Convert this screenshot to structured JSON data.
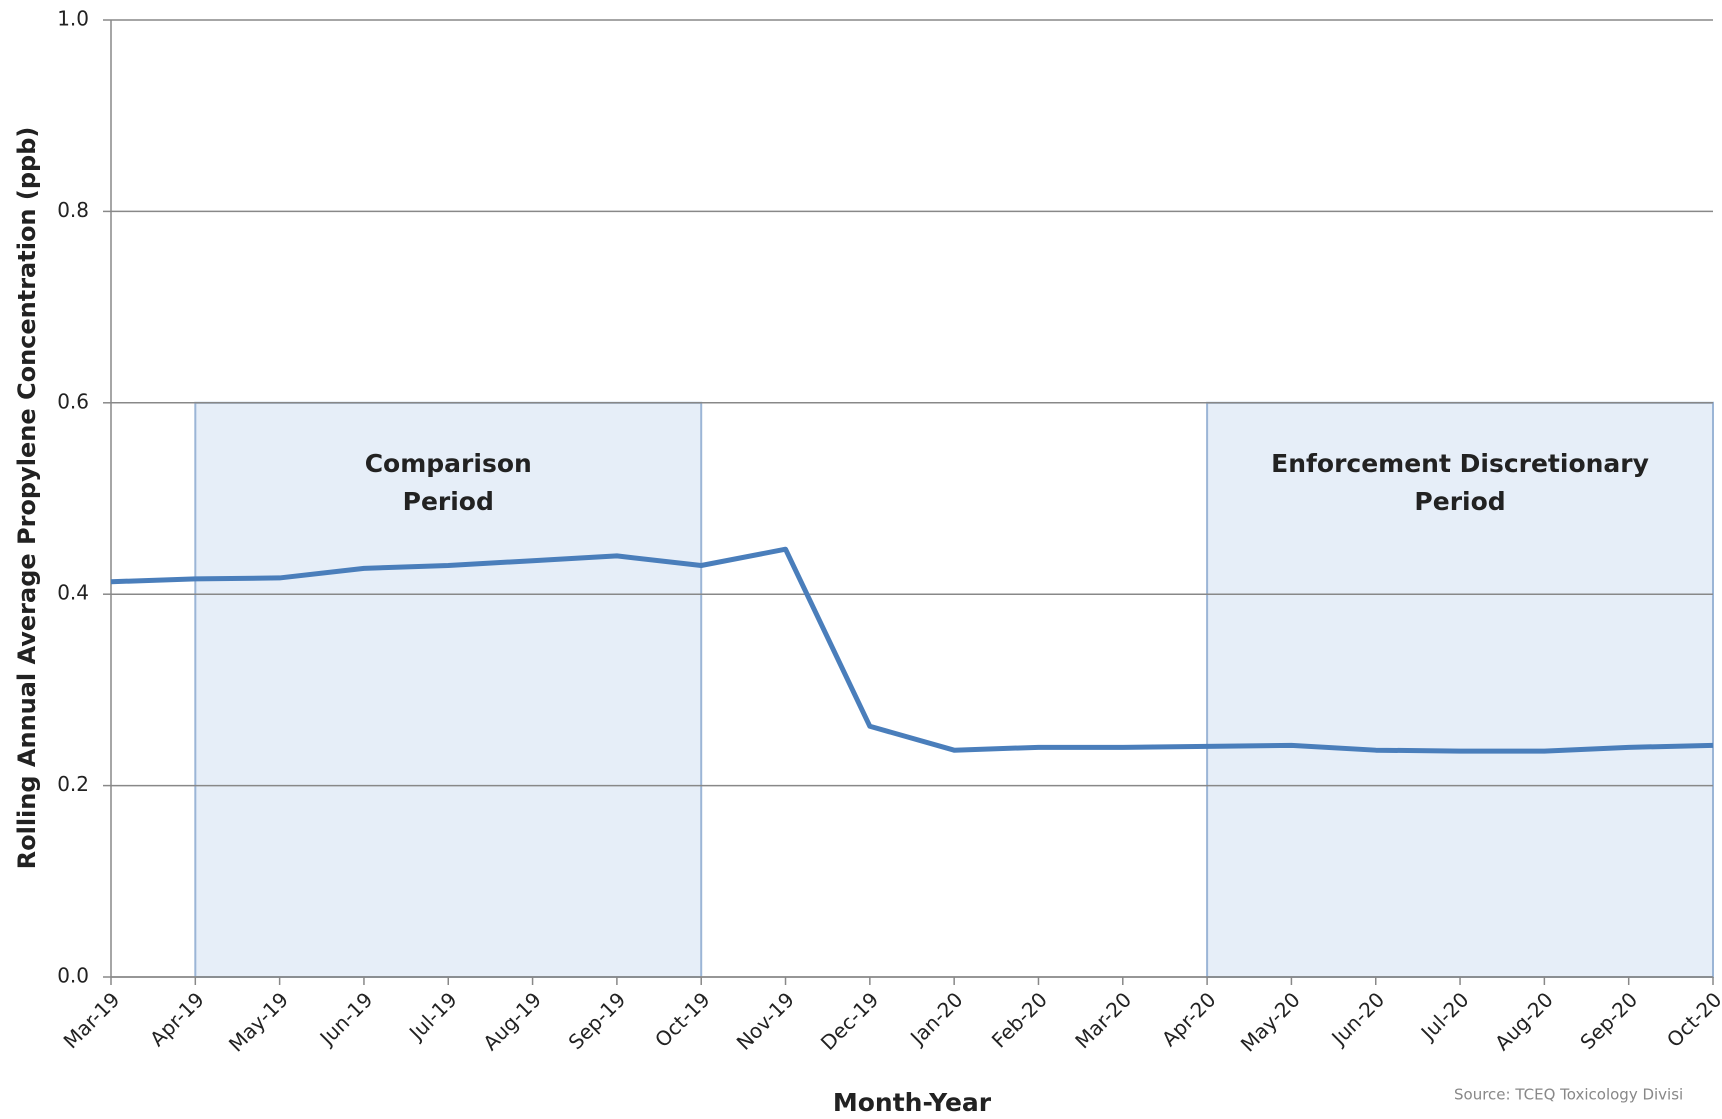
{
  "chart_data": {
    "type": "line",
    "x_label": "Month-Year",
    "y_label": "Rolling Annual Average Propylene Concentration (ppb)",
    "categories": [
      "Mar-19",
      "Apr-19",
      "May-19",
      "Jun-19",
      "Jul-19",
      "Aug-19",
      "Sep-19",
      "Oct-19",
      "Nov-19",
      "Dec-19",
      "Jan-20",
      "Feb-20",
      "Mar-20",
      "Apr-20",
      "May-20",
      "Jun-20",
      "Jul-20",
      "Aug-20",
      "Sep-20",
      "Oct-20"
    ],
    "series": [
      {
        "color": "#4a7ebb",
        "values": [
          0.413,
          0.416,
          0.417,
          0.427,
          0.43,
          0.435,
          0.44,
          0.43,
          0.447,
          0.262,
          0.237,
          0.24,
          0.24,
          0.241,
          0.242,
          0.237,
          0.236,
          0.236,
          0.24,
          0.242
        ]
      }
    ],
    "ylim": [
      0,
      1
    ],
    "yticks": [
      {
        "value": 0,
        "label": "0.0"
      },
      {
        "value": 0.2,
        "label": "0.2"
      },
      {
        "value": 0.4,
        "label": "0.4"
      },
      {
        "value": 0.6,
        "label": "0.6"
      },
      {
        "value": 0.8,
        "label": "0.8"
      },
      {
        "value": 1,
        "label": "1.0"
      }
    ],
    "grid": true,
    "regions": [
      {
        "start": "Apr-19",
        "end": "Oct-19",
        "top": 0.6,
        "label": [
          "Comparison",
          "Period"
        ]
      },
      {
        "start": "Apr-20",
        "end": "Oct-20",
        "top": 0.6,
        "label": [
          "Enforcement Discretionary",
          "Period"
        ]
      }
    ],
    "source": "Source: TCEQ Toxicology Divisi"
  }
}
